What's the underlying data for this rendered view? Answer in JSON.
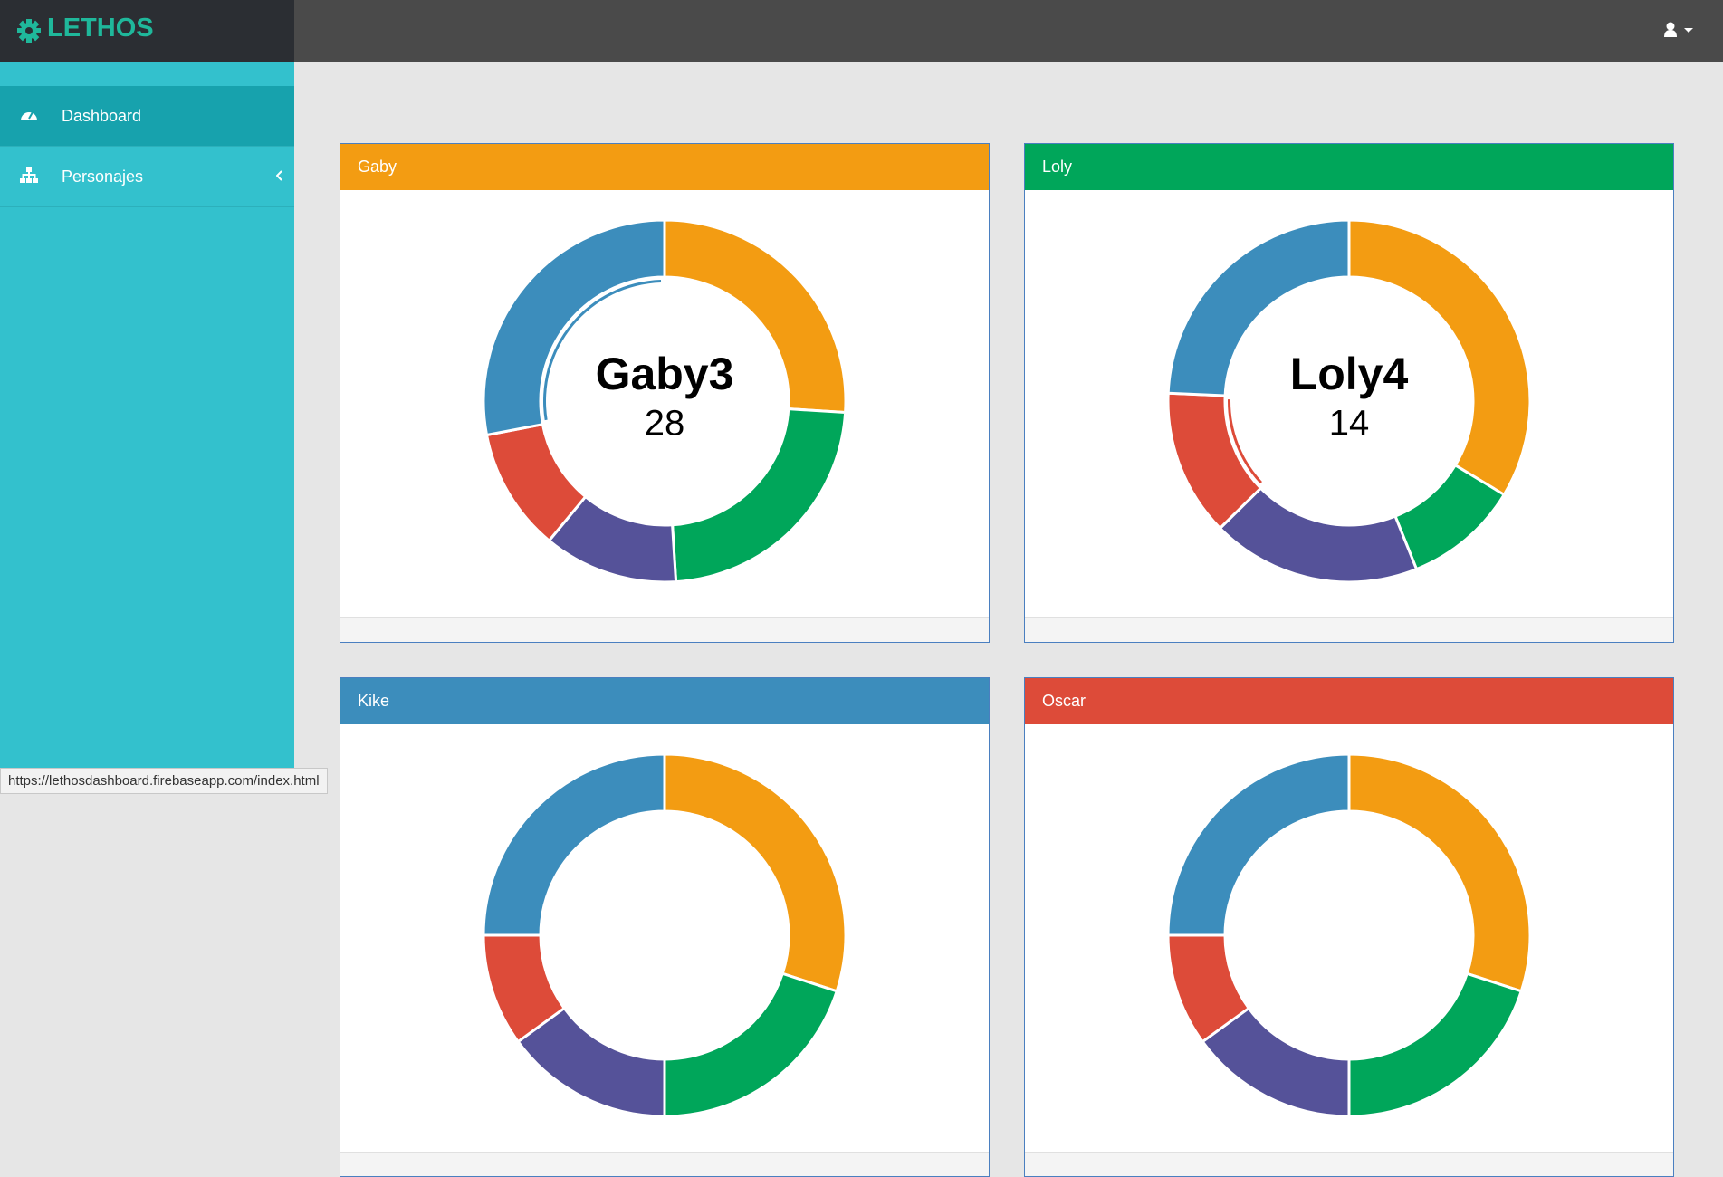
{
  "header": {
    "brand": "LETHOS"
  },
  "sidebar": {
    "items": [
      {
        "label": "Dashboard",
        "active": true
      },
      {
        "label": "Personajes",
        "active": false
      }
    ]
  },
  "charts": [
    {
      "type": "doughnut",
      "title": "Gaby",
      "header_color": "#f39c12",
      "colors": [
        "#f39c12",
        "#00a65a",
        "#555299",
        "#dd4b39",
        "#3c8dbc"
      ],
      "values": [
        26,
        23,
        12,
        11,
        28
      ],
      "highlight": 4,
      "center_label": "Gaby3"
    },
    {
      "type": "doughnut",
      "title": "Loly",
      "header_color": "#00a65a",
      "colors": [
        "#f39c12",
        "#00a65a",
        "#555299",
        "#dd4b39",
        "#3c8dbc"
      ],
      "values": [
        36,
        11,
        20,
        14,
        26
      ],
      "highlight": 3,
      "center_label": "Loly4"
    },
    {
      "type": "doughnut",
      "title": "Kike",
      "header_color": "#3c8dbc",
      "colors": [
        "#f39c12",
        "#00a65a",
        "#555299",
        "#dd4b39",
        "#3c8dbc"
      ],
      "values": [
        30,
        20,
        15,
        10,
        25
      ]
    },
    {
      "type": "doughnut",
      "title": "Oscar",
      "header_color": "#dd4b39",
      "colors": [
        "#f39c12",
        "#00a65a",
        "#555299",
        "#dd4b39",
        "#3c8dbc"
      ],
      "values": [
        30,
        20,
        15,
        10,
        25
      ]
    }
  ],
  "status_bar": "https://lethosdashboard.firebaseapp.com/index.html"
}
